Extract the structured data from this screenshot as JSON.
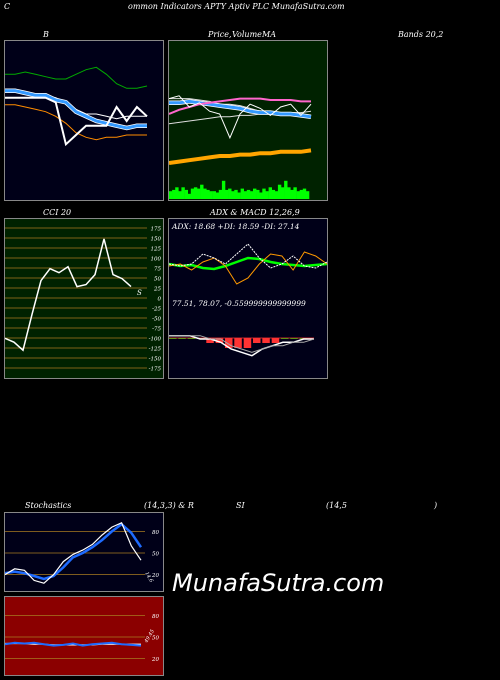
{
  "header": {
    "title_left": "C",
    "title_main": "ommon  Indicators APTY Aptiv  PLC MunafaSutra.com"
  },
  "labels": {
    "b": "B",
    "price": "Price,",
    "volume": "Volume",
    "ma": "MA",
    "bands": "Bands 20,2",
    "cci": "CCI 20",
    "adx_macd": "ADX  & MACD 12,26,9",
    "stoch": "Stochastics",
    "stoch_params": "(14,3,3) & R",
    "si": "SI",
    "rsi_params": "(14,5",
    "paren": ")"
  },
  "watermark": "MunafaSutra.com",
  "colors": {
    "bollinger_bg": "#000018",
    "price_bg": "#002200",
    "cci_bg": "#002200",
    "adx_bg": "#000018",
    "stoch_bg": "#000018",
    "rsi_bg": "#8b0000",
    "volume": "#00ff00",
    "ma_short": "#3399ff",
    "ma_long": "#ffa500",
    "grid": "#a87a20"
  },
  "chart_data": [
    {
      "type": "line",
      "title": "B",
      "subtitle": "Bands 20,2",
      "series": [
        {
          "values": [
            70,
            70,
            71,
            70,
            69,
            68,
            68,
            70,
            72,
            73,
            70,
            66,
            64,
            64,
            65
          ]
        },
        {
          "values": [
            63,
            63,
            62,
            61,
            61,
            60,
            58,
            55,
            53,
            53,
            52,
            51,
            52,
            52,
            52
          ]
        },
        {
          "values": [
            57,
            57,
            56,
            55,
            54,
            52,
            49,
            45,
            43,
            42,
            43,
            43,
            44,
            44,
            44
          ]
        },
        {
          "values": [
            63,
            63,
            62,
            61,
            61,
            59,
            58,
            54,
            52,
            50,
            49,
            48,
            47,
            48,
            48
          ]
        },
        {
          "values": [
            60,
            60,
            60,
            60,
            60,
            58,
            40,
            44,
            48,
            48,
            48,
            56,
            50,
            56,
            52
          ]
        }
      ]
    },
    {
      "type": "line",
      "title": "Price,  Volume  MA",
      "series": [
        {
          "values": [
            66,
            66,
            66,
            65,
            64,
            62,
            62,
            61,
            59,
            57,
            56,
            55,
            54,
            53,
            53
          ]
        },
        {
          "values": [
            48,
            49,
            50,
            51,
            52,
            53,
            53,
            54,
            54,
            55,
            55,
            56,
            56,
            56,
            57
          ]
        },
        {
          "values": [
            63,
            63,
            64,
            63,
            62,
            61,
            60,
            59,
            57,
            56,
            56,
            55,
            55,
            54,
            53
          ]
        },
        {
          "values": [
            55,
            58,
            60,
            62,
            63,
            64,
            65,
            66,
            66,
            66,
            65,
            65,
            65,
            64,
            64
          ]
        },
        {
          "values": [
            20,
            21,
            22,
            23,
            24,
            25,
            25,
            26,
            26,
            27,
            27,
            28,
            28,
            28,
            29
          ]
        },
        {
          "values": [
            66,
            68,
            60,
            63,
            57,
            55,
            38,
            55,
            62,
            59,
            54,
            60,
            62,
            54,
            62
          ]
        }
      ],
      "volume": [
        6,
        7,
        9,
        6,
        9,
        7,
        4,
        8,
        9,
        8,
        11,
        8,
        7,
        6,
        6,
        5,
        7,
        14,
        7,
        8,
        6,
        7,
        5,
        8,
        6,
        7,
        6,
        8,
        7,
        5,
        8,
        6,
        9,
        7,
        6,
        11,
        9,
        14,
        9,
        7,
        9,
        6,
        7,
        8,
        6
      ]
    },
    {
      "type": "line",
      "title": "CCI 20",
      "y_ticks": [
        "175",
        "150",
        "125",
        "100",
        "75",
        "50",
        "25",
        "0",
        "-25",
        "-50",
        "-75",
        "-100",
        "-125",
        "-150",
        "-175"
      ],
      "ylim": [
        -200,
        200
      ],
      "series": [
        {
          "values": [
            -100,
            -110,
            -130,
            -40,
            45,
            75,
            65,
            80,
            30,
            35,
            60,
            150,
            60,
            50,
            30
          ]
        }
      ],
      "end_label": "S"
    },
    {
      "type": "line",
      "title": "ADX  & MACD 12,26,9",
      "adx_readout": "ADX: 18.68  +DI: 18.59 -DI: 27.14",
      "series": [
        {
          "values": [
            50,
            48,
            49,
            46,
            45,
            48,
            52,
            56,
            55,
            52,
            50,
            49,
            48,
            49,
            50
          ]
        },
        {
          "values": [
            48,
            50,
            44,
            52,
            56,
            48,
            30,
            36,
            50,
            60,
            58,
            44,
            62,
            58,
            50
          ]
        },
        {
          "values": [
            50,
            48,
            50,
            60,
            56,
            50,
            60,
            70,
            56,
            46,
            50,
            58,
            48,
            46,
            52
          ]
        }
      ],
      "macd_readout": "77.51,  78.07,  -0.559999999999999",
      "macd": [
        {
          "values": [
            1,
            1,
            1,
            0,
            0,
            -1,
            -3,
            -4,
            -5,
            -3,
            -2,
            -1,
            -1,
            0,
            0
          ]
        },
        {
          "values": [
            1,
            1,
            1,
            1,
            0,
            0,
            -2,
            -3,
            -4,
            -3,
            -2,
            -2,
            -1,
            -1,
            0
          ]
        }
      ],
      "histogram": [
        0,
        0,
        0,
        0,
        -1,
        -1,
        -2,
        -2,
        -2,
        -1,
        -1,
        -1,
        0,
        0,
        0
      ]
    },
    {
      "type": "line",
      "title": "Stochastics (14,3,3)",
      "y_ticks": [
        "80",
        "50",
        "20"
      ],
      "ylim": [
        0,
        100
      ],
      "series": [
        {
          "values": [
            20,
            28,
            26,
            12,
            8,
            20,
            38,
            48,
            54,
            62,
            75,
            86,
            92,
            60,
            40
          ]
        },
        {
          "values": [
            22,
            24,
            22,
            18,
            14,
            18,
            30,
            44,
            50,
            58,
            68,
            80,
            90,
            78,
            58
          ]
        }
      ],
      "end_label": "14.6"
    },
    {
      "type": "line",
      "title": "RSI (14,5)",
      "y_ticks": [
        "80",
        "50",
        "20"
      ],
      "ylim": [
        0,
        100
      ],
      "series": [
        {
          "values": [
            40,
            42,
            41,
            42,
            40,
            38,
            39,
            41,
            38,
            40,
            41,
            42,
            40,
            39,
            38
          ]
        },
        {
          "values": [
            41,
            41,
            41,
            40,
            40,
            39,
            39,
            39,
            39,
            39,
            40,
            40,
            40,
            40,
            40
          ]
        }
      ],
      "end_label": "49.45"
    }
  ]
}
